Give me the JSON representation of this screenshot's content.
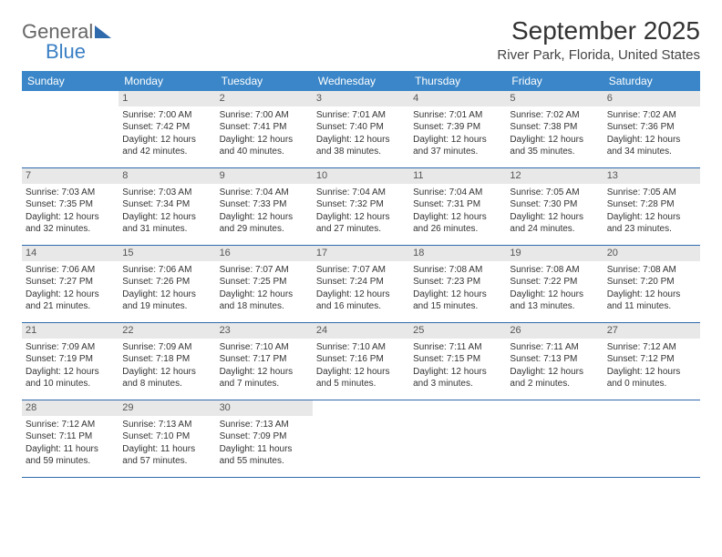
{
  "logo": {
    "general": "General",
    "blue": "Blue"
  },
  "title": "September 2025",
  "location": "River Park, Florida, United States",
  "colors": {
    "header_bar": "#3a86c8",
    "header_text": "#ffffff",
    "daynum_bg": "#e8e8e8",
    "week_border": "#2f6aad",
    "text": "#333333"
  },
  "days_of_week": [
    "Sunday",
    "Monday",
    "Tuesday",
    "Wednesday",
    "Thursday",
    "Friday",
    "Saturday"
  ],
  "weeks": [
    [
      {
        "empty": true
      },
      {
        "num": "1",
        "sunrise": "Sunrise: 7:00 AM",
        "sunset": "Sunset: 7:42 PM",
        "daylight": "Daylight: 12 hours and 42 minutes."
      },
      {
        "num": "2",
        "sunrise": "Sunrise: 7:00 AM",
        "sunset": "Sunset: 7:41 PM",
        "daylight": "Daylight: 12 hours and 40 minutes."
      },
      {
        "num": "3",
        "sunrise": "Sunrise: 7:01 AM",
        "sunset": "Sunset: 7:40 PM",
        "daylight": "Daylight: 12 hours and 38 minutes."
      },
      {
        "num": "4",
        "sunrise": "Sunrise: 7:01 AM",
        "sunset": "Sunset: 7:39 PM",
        "daylight": "Daylight: 12 hours and 37 minutes."
      },
      {
        "num": "5",
        "sunrise": "Sunrise: 7:02 AM",
        "sunset": "Sunset: 7:38 PM",
        "daylight": "Daylight: 12 hours and 35 minutes."
      },
      {
        "num": "6",
        "sunrise": "Sunrise: 7:02 AM",
        "sunset": "Sunset: 7:36 PM",
        "daylight": "Daylight: 12 hours and 34 minutes."
      }
    ],
    [
      {
        "num": "7",
        "sunrise": "Sunrise: 7:03 AM",
        "sunset": "Sunset: 7:35 PM",
        "daylight": "Daylight: 12 hours and 32 minutes."
      },
      {
        "num": "8",
        "sunrise": "Sunrise: 7:03 AM",
        "sunset": "Sunset: 7:34 PM",
        "daylight": "Daylight: 12 hours and 31 minutes."
      },
      {
        "num": "9",
        "sunrise": "Sunrise: 7:04 AM",
        "sunset": "Sunset: 7:33 PM",
        "daylight": "Daylight: 12 hours and 29 minutes."
      },
      {
        "num": "10",
        "sunrise": "Sunrise: 7:04 AM",
        "sunset": "Sunset: 7:32 PM",
        "daylight": "Daylight: 12 hours and 27 minutes."
      },
      {
        "num": "11",
        "sunrise": "Sunrise: 7:04 AM",
        "sunset": "Sunset: 7:31 PM",
        "daylight": "Daylight: 12 hours and 26 minutes."
      },
      {
        "num": "12",
        "sunrise": "Sunrise: 7:05 AM",
        "sunset": "Sunset: 7:30 PM",
        "daylight": "Daylight: 12 hours and 24 minutes."
      },
      {
        "num": "13",
        "sunrise": "Sunrise: 7:05 AM",
        "sunset": "Sunset: 7:28 PM",
        "daylight": "Daylight: 12 hours and 23 minutes."
      }
    ],
    [
      {
        "num": "14",
        "sunrise": "Sunrise: 7:06 AM",
        "sunset": "Sunset: 7:27 PM",
        "daylight": "Daylight: 12 hours and 21 minutes."
      },
      {
        "num": "15",
        "sunrise": "Sunrise: 7:06 AM",
        "sunset": "Sunset: 7:26 PM",
        "daylight": "Daylight: 12 hours and 19 minutes."
      },
      {
        "num": "16",
        "sunrise": "Sunrise: 7:07 AM",
        "sunset": "Sunset: 7:25 PM",
        "daylight": "Daylight: 12 hours and 18 minutes."
      },
      {
        "num": "17",
        "sunrise": "Sunrise: 7:07 AM",
        "sunset": "Sunset: 7:24 PM",
        "daylight": "Daylight: 12 hours and 16 minutes."
      },
      {
        "num": "18",
        "sunrise": "Sunrise: 7:08 AM",
        "sunset": "Sunset: 7:23 PM",
        "daylight": "Daylight: 12 hours and 15 minutes."
      },
      {
        "num": "19",
        "sunrise": "Sunrise: 7:08 AM",
        "sunset": "Sunset: 7:22 PM",
        "daylight": "Daylight: 12 hours and 13 minutes."
      },
      {
        "num": "20",
        "sunrise": "Sunrise: 7:08 AM",
        "sunset": "Sunset: 7:20 PM",
        "daylight": "Daylight: 12 hours and 11 minutes."
      }
    ],
    [
      {
        "num": "21",
        "sunrise": "Sunrise: 7:09 AM",
        "sunset": "Sunset: 7:19 PM",
        "daylight": "Daylight: 12 hours and 10 minutes."
      },
      {
        "num": "22",
        "sunrise": "Sunrise: 7:09 AM",
        "sunset": "Sunset: 7:18 PM",
        "daylight": "Daylight: 12 hours and 8 minutes."
      },
      {
        "num": "23",
        "sunrise": "Sunrise: 7:10 AM",
        "sunset": "Sunset: 7:17 PM",
        "daylight": "Daylight: 12 hours and 7 minutes."
      },
      {
        "num": "24",
        "sunrise": "Sunrise: 7:10 AM",
        "sunset": "Sunset: 7:16 PM",
        "daylight": "Daylight: 12 hours and 5 minutes."
      },
      {
        "num": "25",
        "sunrise": "Sunrise: 7:11 AM",
        "sunset": "Sunset: 7:15 PM",
        "daylight": "Daylight: 12 hours and 3 minutes."
      },
      {
        "num": "26",
        "sunrise": "Sunrise: 7:11 AM",
        "sunset": "Sunset: 7:13 PM",
        "daylight": "Daylight: 12 hours and 2 minutes."
      },
      {
        "num": "27",
        "sunrise": "Sunrise: 7:12 AM",
        "sunset": "Sunset: 7:12 PM",
        "daylight": "Daylight: 12 hours and 0 minutes."
      }
    ],
    [
      {
        "num": "28",
        "sunrise": "Sunrise: 7:12 AM",
        "sunset": "Sunset: 7:11 PM",
        "daylight": "Daylight: 11 hours and 59 minutes."
      },
      {
        "num": "29",
        "sunrise": "Sunrise: 7:13 AM",
        "sunset": "Sunset: 7:10 PM",
        "daylight": "Daylight: 11 hours and 57 minutes."
      },
      {
        "num": "30",
        "sunrise": "Sunrise: 7:13 AM",
        "sunset": "Sunset: 7:09 PM",
        "daylight": "Daylight: 11 hours and 55 minutes."
      },
      {
        "empty": true
      },
      {
        "empty": true
      },
      {
        "empty": true
      },
      {
        "empty": true
      }
    ]
  ]
}
